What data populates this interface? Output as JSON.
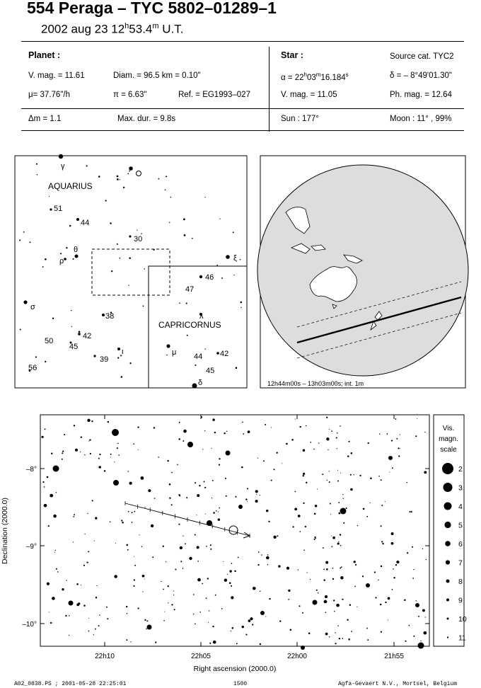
{
  "header": {
    "title": "554 Peraga  –  TYC 5802–01289–1",
    "date": "2002 aug 23  12",
    "date_h": "h",
    "date_min": "53.4",
    "date_m": "m",
    "date_ut": " U.T."
  },
  "planet": {
    "heading": "Planet :",
    "vmag": "V. mag. = 11.61",
    "diam": "Diam. = 96.5 km = 0.10\"",
    "mu": "μ=  37.76\"/h",
    "pi": "π =  6.63\"",
    "ref": "Ref. = EG1993–027"
  },
  "star": {
    "heading": "Star :",
    "source": "Source cat.  TYC2",
    "alpha": "α = 22",
    "alpha_h": "h",
    "alpha_mid": "03",
    "alpha_m": "m",
    "alpha_end": "16.184",
    "alpha_s": "s",
    "delta": "δ = – 8°49'01.30\"",
    "vmag": "V. mag. = 11.05",
    "phmag": "Ph. mag. = 12.64"
  },
  "summary": {
    "dm": "Δm = 1.1",
    "maxdur": "Max. dur. = 9.8s",
    "sun": "Sun : 177°",
    "moon": "Moon :  11° , 99%"
  },
  "finder": {
    "aquarius": "AQUARIUS",
    "capricornus": "CAPRICORNUS",
    "labels": [
      {
        "t": "γ",
        "x": 86,
        "y": 238
      },
      {
        "t": "51",
        "x": 76,
        "y": 298
      },
      {
        "t": "44",
        "x": 114,
        "y": 318
      },
      {
        "t": "30",
        "x": 189,
        "y": 341
      },
      {
        "t": "θ",
        "x": 104,
        "y": 356
      },
      {
        "t": "ρ",
        "x": 84,
        "y": 372
      },
      {
        "t": "ξ",
        "x": 330,
        "y": 368
      },
      {
        "t": "46",
        "x": 290,
        "y": 395
      },
      {
        "t": "47",
        "x": 262,
        "y": 412
      },
      {
        "t": "σ",
        "x": 43,
        "y": 437
      },
      {
        "t": "38",
        "x": 149,
        "y": 450
      },
      {
        "t": "λ",
        "x": 282,
        "y": 450
      },
      {
        "t": "42",
        "x": 117,
        "y": 478
      },
      {
        "t": "50",
        "x": 63,
        "y": 485
      },
      {
        "t": "45",
        "x": 98,
        "y": 493
      },
      {
        "t": "μ",
        "x": 243,
        "y": 501
      },
      {
        "t": "ι",
        "x": 172,
        "y": 500
      },
      {
        "t": "39",
        "x": 141,
        "y": 511
      },
      {
        "t": "44",
        "x": 274,
        "y": 507
      },
      {
        "t": "42",
        "x": 311,
        "y": 503
      },
      {
        "t": "45",
        "x": 291,
        "y": 527
      },
      {
        "t": "56",
        "x": 40,
        "y": 523
      },
      {
        "t": "δ",
        "x": 280,
        "y": 544
      }
    ]
  },
  "globe": {
    "caption": "12h44m00s – 13h03m00s; int.  1m"
  },
  "chart_data": {
    "type": "scatter",
    "xlabel": "Right ascension (2000.0)",
    "ylabel": "Declination (2000.0)",
    "xticks": [
      "22h10",
      "22h05",
      "22h00",
      "21h55"
    ],
    "yticks": [
      "–8°",
      "–9°",
      "–10°"
    ],
    "track_label": "planet path",
    "target_star": {
      "ra": "22h03m16.184s",
      "dec": "–8°49'01.30\""
    }
  },
  "scale": {
    "title1": "Vis.",
    "title2": "magn.",
    "title3": "scale",
    "items": [
      "2",
      "3",
      "4",
      "5",
      "6",
      "7",
      "8",
      "9",
      "10",
      "11"
    ]
  },
  "footer": {
    "left": "A02_0838.PS ; 2001-05-28 22:25:01",
    "mid": "1500",
    "right": "Agfa-Gevaert N.V., Mortsel, Belgium"
  }
}
